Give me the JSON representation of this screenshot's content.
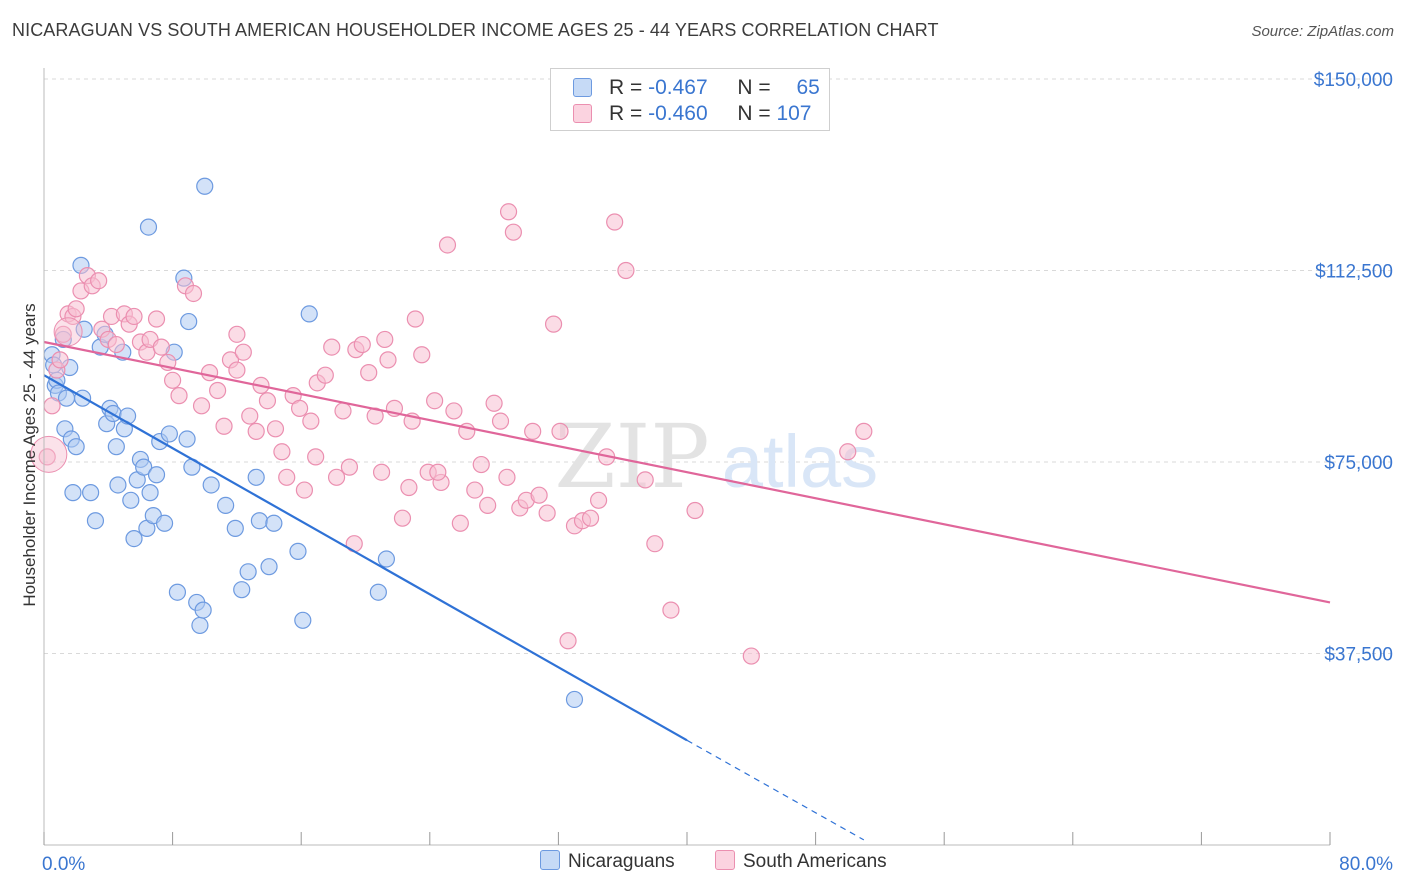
{
  "title": "NICARAGUAN VS SOUTH AMERICAN HOUSEHOLDER INCOME AGES 25 - 44 YEARS CORRELATION CHART",
  "source": "Source: ZipAtlas.com",
  "watermark": {
    "zip": "ZIP",
    "atlas": "atlas"
  },
  "legend": {
    "rows": [
      {
        "r_label": "R = ",
        "r_value": "-0.467",
        "n_label": "N = ",
        "n_value": "65"
      },
      {
        "r_label": "R = ",
        "r_value": "-0.460",
        "n_label": "N = ",
        "n_value": "107"
      }
    ]
  },
  "bottom_legend": [
    "Nicaraguans",
    "South Americans"
  ],
  "colors": {
    "blue_fill": "#aecbf2",
    "blue_stroke": "#6d9ae0",
    "blue_line": "#2f72d6",
    "pink_fill": "#f7bfd1",
    "pink_stroke": "#eb8fb0",
    "pink_line": "#e0669a",
    "grid": "#d9d9d9",
    "tick_label": "#3a76d0"
  },
  "chart_data": {
    "type": "scatter",
    "ylabel": "Householder Income Ages 25 - 44 years",
    "xlim": [
      0,
      80
    ],
    "ylim": [
      0,
      155000
    ],
    "x_tick_labels": [
      "0.0%",
      "80.0%"
    ],
    "y_ticks": [
      {
        "value": 37500,
        "label": "$37,500"
      },
      {
        "value": 75000,
        "label": "$75,000"
      },
      {
        "value": 112500,
        "label": "$112,500"
      },
      {
        "value": 150000,
        "label": "$150,000"
      }
    ],
    "grid": true,
    "legend_position": "top-center",
    "series": [
      {
        "name": "Nicaraguans",
        "color": "#6d9ae0",
        "points": [
          [
            0.5,
            96000
          ],
          [
            0.6,
            94000
          ],
          [
            0.7,
            90000
          ],
          [
            0.8,
            91000
          ],
          [
            0.9,
            88500
          ],
          [
            1.2,
            99000
          ],
          [
            1.3,
            81500
          ],
          [
            1.4,
            87500
          ],
          [
            1.6,
            93500
          ],
          [
            1.7,
            79500
          ],
          [
            1.8,
            69000
          ],
          [
            2,
            78000
          ],
          [
            2.3,
            113500
          ],
          [
            2.4,
            87500
          ],
          [
            2.5,
            101000
          ],
          [
            2.9,
            69000
          ],
          [
            3.2,
            63500
          ],
          [
            3.5,
            97500
          ],
          [
            3.8,
            100000
          ],
          [
            3.9,
            82500
          ],
          [
            4.1,
            85500
          ],
          [
            4.3,
            84500
          ],
          [
            4.5,
            78000
          ],
          [
            4.6,
            70500
          ],
          [
            4.9,
            96500
          ],
          [
            5,
            81500
          ],
          [
            5.2,
            84000
          ],
          [
            5.4,
            67500
          ],
          [
            5.6,
            60000
          ],
          [
            5.8,
            71500
          ],
          [
            6,
            75500
          ],
          [
            6.2,
            74000
          ],
          [
            6.4,
            62000
          ],
          [
            6.6,
            69000
          ],
          [
            6.8,
            64500
          ],
          [
            7,
            72500
          ],
          [
            7.2,
            79000
          ],
          [
            7.5,
            63000
          ],
          [
            7.8,
            80500
          ],
          [
            8.1,
            96500
          ],
          [
            8.3,
            49500
          ],
          [
            8.7,
            111000
          ],
          [
            8.9,
            79500
          ],
          [
            9,
            102500
          ],
          [
            9.2,
            74000
          ],
          [
            9.5,
            47500
          ],
          [
            9.7,
            43000
          ],
          [
            9.9,
            46000
          ],
          [
            10,
            129000
          ],
          [
            10.4,
            70500
          ],
          [
            11.3,
            66500
          ],
          [
            11.9,
            62000
          ],
          [
            12.3,
            50000
          ],
          [
            12.7,
            53500
          ],
          [
            13.2,
            72000
          ],
          [
            13.4,
            63500
          ],
          [
            14,
            54500
          ],
          [
            14.3,
            63000
          ],
          [
            15.8,
            57500
          ],
          [
            16.1,
            44000
          ],
          [
            16.5,
            104000
          ],
          [
            20.8,
            49500
          ],
          [
            21.3,
            56000
          ],
          [
            33,
            28500
          ],
          [
            6.5,
            121000
          ]
        ]
      },
      {
        "name": "South Americans",
        "color": "#eb8fb0",
        "points": [
          [
            0.2,
            76000
          ],
          [
            0.5,
            86000
          ],
          [
            0.8,
            93000
          ],
          [
            1,
            95000
          ],
          [
            1.2,
            100000
          ],
          [
            1.5,
            104000
          ],
          [
            1.8,
            103500
          ],
          [
            2,
            105000
          ],
          [
            2.3,
            108500
          ],
          [
            2.7,
            111500
          ],
          [
            3,
            109500
          ],
          [
            3.4,
            110500
          ],
          [
            3.6,
            101000
          ],
          [
            4,
            99000
          ],
          [
            4.2,
            103500
          ],
          [
            4.5,
            98000
          ],
          [
            5,
            104000
          ],
          [
            5.3,
            102000
          ],
          [
            5.6,
            103500
          ],
          [
            6,
            98500
          ],
          [
            6.4,
            96500
          ],
          [
            6.6,
            99000
          ],
          [
            7,
            103000
          ],
          [
            7.3,
            97500
          ],
          [
            7.7,
            94500
          ],
          [
            8,
            91000
          ],
          [
            8.4,
            88000
          ],
          [
            8.8,
            109500
          ],
          [
            9.3,
            108000
          ],
          [
            9.8,
            86000
          ],
          [
            10.3,
            92500
          ],
          [
            10.8,
            89000
          ],
          [
            11.2,
            82000
          ],
          [
            11.6,
            95000
          ],
          [
            12,
            93000
          ],
          [
            12.4,
            96500
          ],
          [
            12.8,
            84000
          ],
          [
            13.2,
            81000
          ],
          [
            13.5,
            90000
          ],
          [
            13.9,
            87000
          ],
          [
            14.4,
            81500
          ],
          [
            14.8,
            77000
          ],
          [
            15.1,
            72000
          ],
          [
            15.5,
            88000
          ],
          [
            15.9,
            85500
          ],
          [
            16.2,
            69500
          ],
          [
            16.6,
            83000
          ],
          [
            17,
            90500
          ],
          [
            17.5,
            92000
          ],
          [
            17.9,
            97500
          ],
          [
            18.2,
            72000
          ],
          [
            18.6,
            85000
          ],
          [
            19,
            74000
          ],
          [
            19.4,
            97000
          ],
          [
            19.8,
            98000
          ],
          [
            20.2,
            92500
          ],
          [
            20.6,
            84000
          ],
          [
            21,
            73000
          ],
          [
            21.4,
            95000
          ],
          [
            21.8,
            85500
          ],
          [
            22.3,
            64000
          ],
          [
            22.7,
            70000
          ],
          [
            23.1,
            103000
          ],
          [
            23.5,
            96000
          ],
          [
            23.9,
            73000
          ],
          [
            24.3,
            87000
          ],
          [
            24.7,
            71000
          ],
          [
            25.1,
            117500
          ],
          [
            25.5,
            85000
          ],
          [
            25.9,
            63000
          ],
          [
            26.3,
            81000
          ],
          [
            26.8,
            69500
          ],
          [
            27.2,
            74500
          ],
          [
            27.6,
            66500
          ],
          [
            28,
            86500
          ],
          [
            28.4,
            83000
          ],
          [
            28.8,
            72000
          ],
          [
            29.2,
            120000
          ],
          [
            29.6,
            66000
          ],
          [
            30,
            67500
          ],
          [
            30.4,
            81000
          ],
          [
            30.8,
            68500
          ],
          [
            31.3,
            65000
          ],
          [
            31.7,
            102000
          ],
          [
            32.1,
            81000
          ],
          [
            32.6,
            40000
          ],
          [
            33,
            62500
          ],
          [
            33.5,
            63500
          ],
          [
            34,
            64000
          ],
          [
            34.5,
            67500
          ],
          [
            35,
            76000
          ],
          [
            35.5,
            122000
          ],
          [
            36.2,
            112500
          ],
          [
            37.4,
            71500
          ],
          [
            38,
            59000
          ],
          [
            39,
            46000
          ],
          [
            40.5,
            65500
          ],
          [
            44,
            37000
          ],
          [
            50,
            77000
          ],
          [
            51,
            81000
          ],
          [
            24.5,
            73000
          ],
          [
            21.2,
            99000
          ],
          [
            22.9,
            83000
          ],
          [
            28.9,
            124000
          ],
          [
            19.3,
            59000
          ],
          [
            16.9,
            76000
          ],
          [
            12,
            100000
          ]
        ]
      }
    ],
    "trend_lines": [
      {
        "series": "Nicaraguans",
        "x_start": 0,
        "y_start": 92000,
        "x_end": 40,
        "y_end": 20500,
        "dashed_to_x": 51,
        "dashed_to_y": 1000
      },
      {
        "series": "South Americans",
        "x_start": 0,
        "y_start": 98500,
        "x_end": 80,
        "y_end": 47500
      }
    ]
  }
}
